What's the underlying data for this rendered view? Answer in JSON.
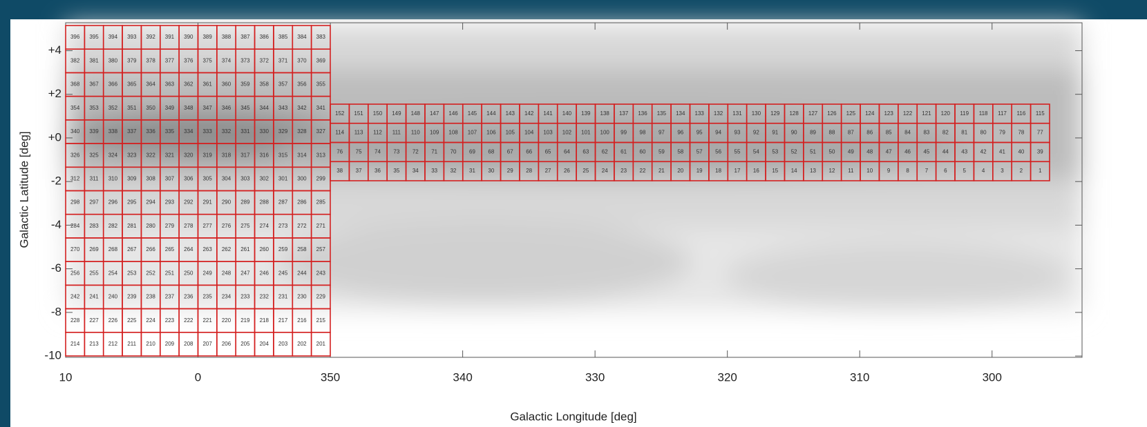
{
  "chart_data": {
    "type": "tiling",
    "xlabel": "Galactic Longitude [deg]",
    "ylabel": "Galactic Latitude [deg]",
    "xlim": [
      10,
      -66.8
    ],
    "ylim": [
      -10.06,
      5.28
    ],
    "xticks": [
      {
        "value": 10,
        "label": "10"
      },
      {
        "value": 0,
        "label": "0"
      },
      {
        "value": -10,
        "label": "350"
      },
      {
        "value": -20,
        "label": "340"
      },
      {
        "value": -30,
        "label": "330"
      },
      {
        "value": -40,
        "label": "320"
      },
      {
        "value": -50,
        "label": "310"
      },
      {
        "value": -60,
        "label": "300"
      }
    ],
    "yticks": [
      {
        "value": 4,
        "label": "+4"
      },
      {
        "value": 2,
        "label": "+2"
      },
      {
        "value": 0,
        "label": "+0"
      },
      -2,
      -4,
      -6,
      -8,
      -10
    ],
    "tile_color": "#d42020",
    "tiles": [
      {
        "rows": [
          [
            396,
            395,
            394,
            393,
            392,
            391,
            390,
            389,
            388,
            387,
            386,
            385,
            384,
            383
          ],
          [
            382,
            381,
            380,
            379,
            378,
            377,
            376,
            375,
            374,
            373,
            372,
            371,
            370,
            369
          ],
          [
            368,
            367,
            366,
            365,
            364,
            363,
            362,
            361,
            360,
            359,
            358,
            357,
            356,
            355
          ],
          [
            354,
            353,
            352,
            351,
            350,
            349,
            348,
            347,
            346,
            345,
            344,
            343,
            342,
            341
          ],
          [
            340,
            339,
            338,
            337,
            336,
            335,
            334,
            333,
            332,
            331,
            330,
            329,
            328,
            327
          ],
          [
            326,
            325,
            324,
            323,
            322,
            321,
            320,
            319,
            318,
            317,
            316,
            315,
            314,
            313
          ],
          [
            312,
            311,
            310,
            309,
            308,
            307,
            306,
            305,
            304,
            303,
            302,
            301,
            300,
            299
          ],
          [
            298,
            297,
            296,
            295,
            294,
            293,
            292,
            291,
            290,
            289,
            288,
            287,
            286,
            285
          ],
          [
            284,
            283,
            282,
            281,
            280,
            279,
            278,
            277,
            276,
            275,
            274,
            273,
            272,
            271
          ],
          [
            270,
            269,
            268,
            267,
            266,
            265,
            264,
            263,
            262,
            261,
            260,
            259,
            258,
            257
          ],
          [
            256,
            255,
            254,
            253,
            252,
            251,
            250,
            249,
            248,
            247,
            246,
            245,
            244,
            243
          ],
          [
            242,
            241,
            240,
            239,
            238,
            237,
            236,
            235,
            234,
            233,
            232,
            231,
            230,
            229
          ],
          [
            228,
            227,
            226,
            225,
            224,
            223,
            222,
            221,
            220,
            219,
            218,
            217,
            216,
            215
          ],
          [
            214,
            213,
            212,
            211,
            210,
            209,
            208,
            207,
            206,
            205,
            204,
            203,
            202,
            201
          ]
        ]
      },
      {
        "rows": [
          [
            152,
            151,
            150,
            149,
            148,
            147,
            146,
            145,
            144,
            143,
            142,
            141,
            140,
            139,
            138,
            137,
            136,
            135,
            134,
            133,
            132,
            131,
            130,
            129,
            128,
            127,
            126,
            125,
            124,
            123,
            122,
            121,
            120,
            119,
            118,
            117,
            116,
            115
          ],
          [
            114,
            113,
            112,
            111,
            110,
            109,
            108,
            107,
            106,
            105,
            104,
            103,
            102,
            101,
            100,
            99,
            98,
            97,
            96,
            95,
            94,
            93,
            92,
            91,
            90,
            89,
            88,
            87,
            86,
            85,
            84,
            83,
            82,
            81,
            80,
            79,
            78,
            77
          ],
          [
            76,
            75,
            74,
            73,
            72,
            71,
            70,
            69,
            68,
            67,
            66,
            65,
            64,
            63,
            62,
            61,
            60,
            59,
            58,
            57,
            56,
            55,
            54,
            53,
            52,
            51,
            50,
            49,
            48,
            47,
            46,
            45,
            44,
            43,
            42,
            41,
            40,
            39
          ],
          [
            38,
            37,
            36,
            35,
            34,
            33,
            32,
            31,
            30,
            29,
            28,
            27,
            26,
            25,
            24,
            23,
            22,
            21,
            20,
            19,
            18,
            17,
            16,
            15,
            14,
            13,
            12,
            11,
            10,
            9,
            8,
            7,
            6,
            5,
            4,
            3,
            2,
            1
          ]
        ]
      }
    ]
  }
}
